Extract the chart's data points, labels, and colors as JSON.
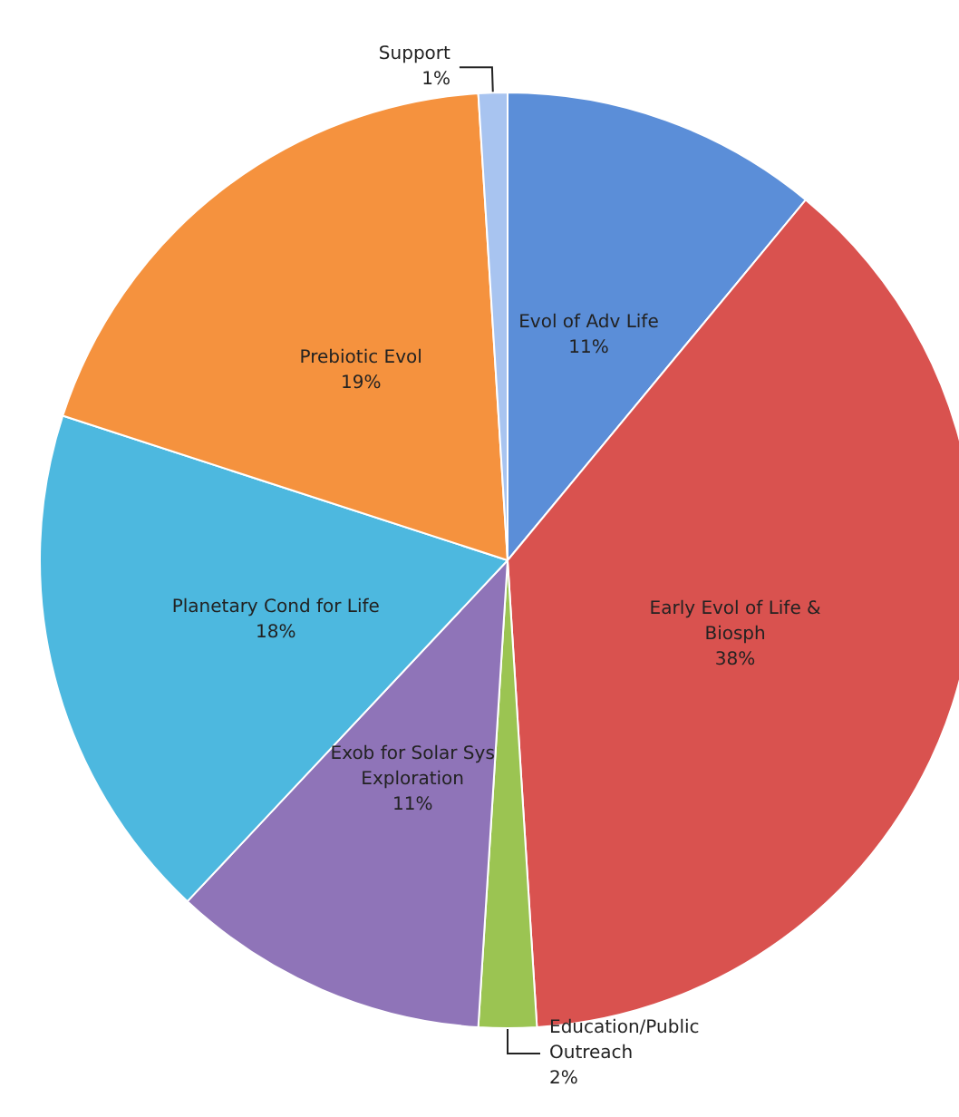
{
  "chart_data": {
    "type": "pie",
    "categories": [
      "Evol of Adv Life",
      "Early Evol of Life & Biosph",
      "Education/Public Outreach",
      "Exob for Solar Sys Exploration",
      "Planetary Cond for Life",
      "Prebiotic Evol",
      "Support"
    ],
    "values": [
      11,
      38,
      2,
      11,
      18,
      19,
      1
    ],
    "value_labels": [
      "11%",
      "38%",
      "2%",
      "11%",
      "18%",
      "19%",
      "1%"
    ],
    "colors": [
      "#5b8ed8",
      "#d9524f",
      "#9bc452",
      "#8f74b8",
      "#4db8df",
      "#f5923e",
      "#a8c4f0"
    ],
    "legend": false
  }
}
